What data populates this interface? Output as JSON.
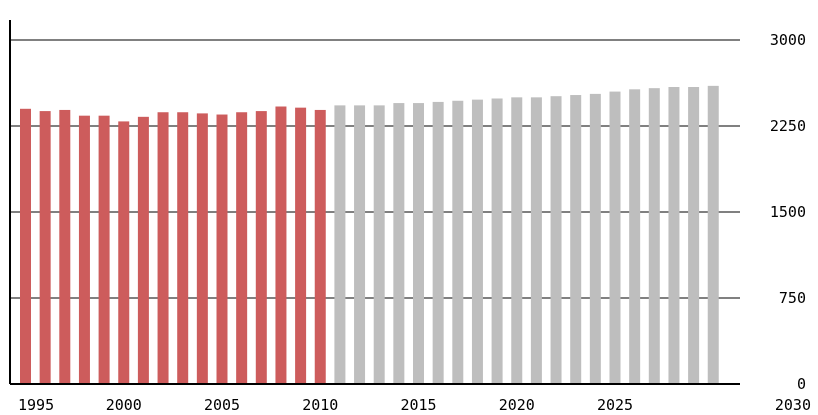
{
  "chart_data": {
    "type": "bar",
    "title": "",
    "xlabel": "",
    "ylabel": "",
    "ylim": [
      0,
      3000
    ],
    "y_ticks": [
      0,
      750,
      1500,
      2250,
      3000
    ],
    "y_tick_labels": [
      "0",
      "750",
      "1500",
      "2250",
      "3000"
    ],
    "x_tick_labels": [
      "1995",
      "2000",
      "2005",
      "2010",
      "2015",
      "2020",
      "2025",
      "2030"
    ],
    "grid": "horizontal",
    "y_axis_side": "right",
    "categories": [
      "1995",
      "1996",
      "1997",
      "1998",
      "1999",
      "2000",
      "2001",
      "2002",
      "2003",
      "2004",
      "2005",
      "2006",
      "2007",
      "2008",
      "2009",
      "2010",
      "2011",
      "2012",
      "2013",
      "2014",
      "2015",
      "2016",
      "2017",
      "2018",
      "2019",
      "2020",
      "2021",
      "2022",
      "2023",
      "2024",
      "2025",
      "2026",
      "2027",
      "2028",
      "2029",
      "2030"
    ],
    "series": [
      {
        "color": "#cd5c5c",
        "values": [
          2400,
          2380,
          2390,
          2340,
          2340,
          2290,
          2330,
          2370,
          2370,
          2360,
          2350,
          2370,
          2380,
          2420,
          2410,
          2390,
          null,
          null,
          null,
          null,
          null,
          null,
          null,
          null,
          null,
          null,
          null,
          null,
          null,
          null,
          null,
          null,
          null,
          null,
          null,
          null
        ]
      },
      {
        "color": "#bebebe",
        "values": [
          null,
          null,
          null,
          null,
          null,
          null,
          null,
          null,
          null,
          null,
          null,
          null,
          null,
          null,
          null,
          null,
          2430,
          2430,
          2430,
          2450,
          2450,
          2460,
          2470,
          2480,
          2490,
          2500,
          2500,
          2510,
          2520,
          2530,
          2550,
          2570,
          2580,
          2590,
          2590,
          2600
        ]
      }
    ]
  }
}
